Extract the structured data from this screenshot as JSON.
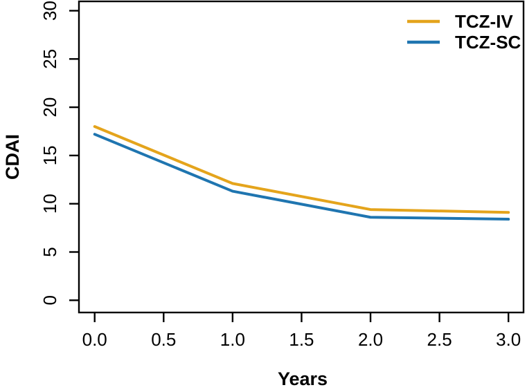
{
  "chart_data": {
    "type": "line",
    "title": "",
    "xlabel": "Years",
    "ylabel": "CDAI",
    "x": [
      0,
      1,
      2,
      3
    ],
    "series": [
      {
        "name": "TCZ-IV",
        "color": "#E4A41C",
        "values": [
          18.0,
          12.1,
          9.4,
          9.1
        ]
      },
      {
        "name": "TCZ-SC",
        "color": "#1F75B0",
        "values": [
          17.2,
          11.3,
          8.6,
          8.4
        ]
      }
    ],
    "xlim": [
      0,
      3
    ],
    "ylim": [
      0,
      30
    ],
    "x_tick_values": [
      0,
      0.5,
      1,
      1.5,
      2,
      2.5,
      3
    ],
    "x_ticks": [
      "0.0",
      "0.5",
      "1.0",
      "1.5",
      "2.0",
      "2.5",
      "3.0"
    ],
    "y_tick_values": [
      0,
      5,
      10,
      15,
      20,
      25,
      30
    ],
    "y_ticks": [
      "0",
      "5",
      "10",
      "15",
      "20",
      "25",
      "30"
    ],
    "grid": false,
    "legend_position": "top-right",
    "legend": [
      "TCZ-IV",
      "TCZ-SC"
    ],
    "axis_color": "#000000"
  }
}
